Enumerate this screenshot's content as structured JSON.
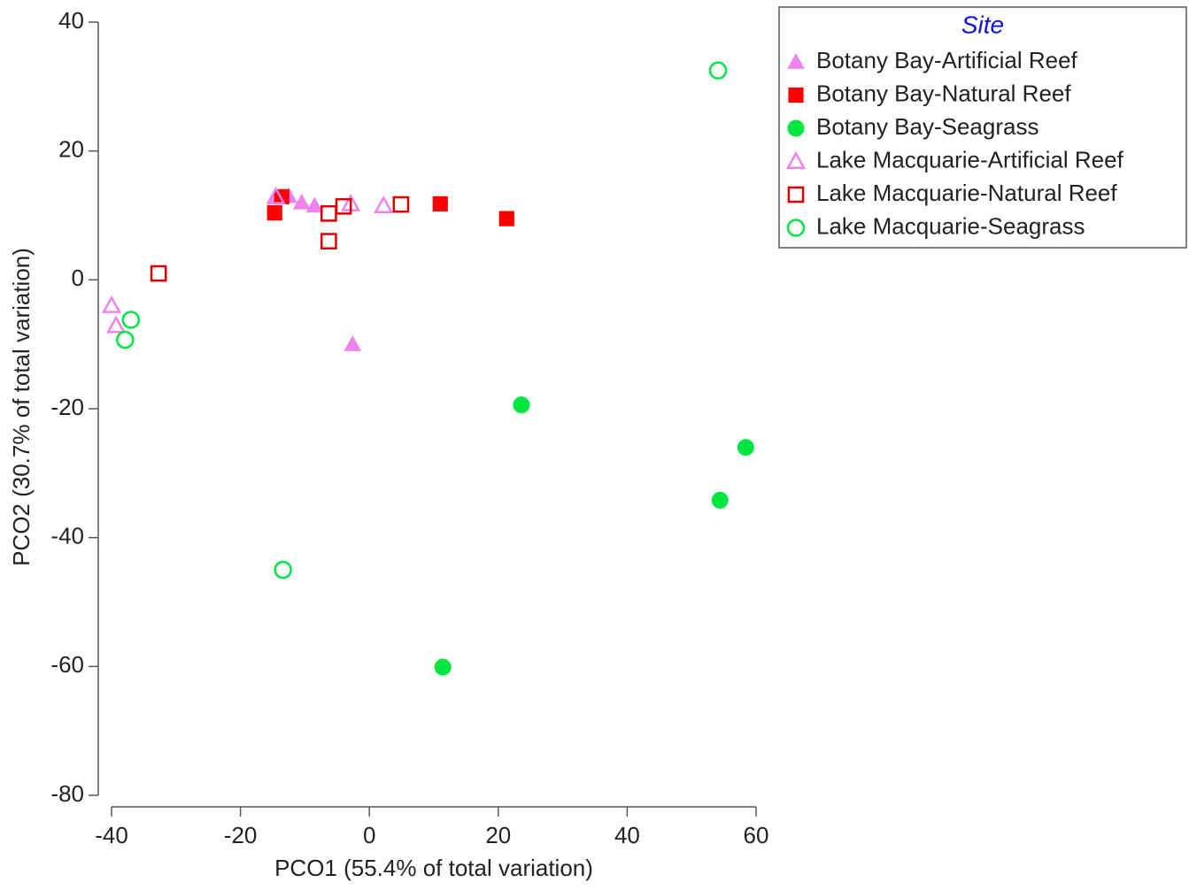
{
  "chart_data": {
    "type": "scatter",
    "xlabel": "PCO1 (55.4% of total variation)",
    "ylabel": "PCO2 (30.7% of total variation)",
    "xlim": [
      -40,
      60
    ],
    "xticks": [
      -40,
      -20,
      0,
      20,
      40,
      60
    ],
    "ylim": [
      -80,
      40
    ],
    "yticks": [
      -80,
      -60,
      -40,
      -20,
      0,
      20,
      40
    ],
    "legend_title": "Site",
    "legend_position": "right",
    "series": [
      {
        "name": "Botany Bay-Artificial Reef",
        "color": "#ee82ee",
        "marker": "triangle",
        "filled": true,
        "x": [
          -14.5,
          -12.5,
          -10.5,
          -8.5,
          -2.6
        ],
        "y": [
          13,
          13,
          12,
          11.5,
          -10
        ]
      },
      {
        "name": "Botany Bay-Natural Reef",
        "color": "#ff0000",
        "marker": "square",
        "filled": true,
        "x": [
          -14.7,
          -13.6,
          11.0,
          21.3
        ],
        "y": [
          10.4,
          12.9,
          11.8,
          9.5
        ]
      },
      {
        "name": "Botany Bay-Seagrass",
        "color": "#00e640",
        "marker": "circle",
        "filled": true,
        "x": [
          23.6,
          58.4,
          54.4,
          11.4
        ],
        "y": [
          -19.4,
          -26,
          -34.2,
          -60.1
        ]
      },
      {
        "name": "Lake Macquarie-Artificial Reef",
        "color": "#ee82ee",
        "marker": "triangle",
        "filled": false,
        "x": [
          -40,
          -39.3,
          -14.5,
          -2.9,
          2.2
        ],
        "y": [
          -4,
          -7.1,
          12.9,
          11.8,
          11.5
        ]
      },
      {
        "name": "Lake Macquarie-Natural Reef",
        "color": "#dd0000",
        "marker": "square",
        "filled": false,
        "x": [
          -32.7,
          -6.3,
          -6.3,
          -4,
          4.9
        ],
        "y": [
          1.0,
          10.3,
          6.0,
          11.4,
          11.7
        ]
      },
      {
        "name": "Lake Macquarie-Seagrass",
        "color": "#00e640",
        "marker": "circle",
        "filled": false,
        "x": [
          54.1,
          -37,
          -37.9,
          -13.4
        ],
        "y": [
          32.5,
          -6.2,
          -9.3,
          -45
        ]
      }
    ]
  }
}
